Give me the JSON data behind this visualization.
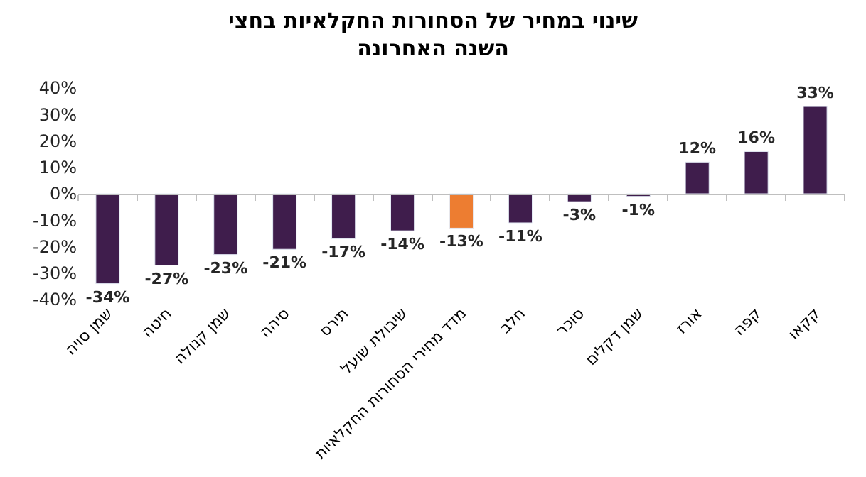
{
  "chart_data": {
    "type": "bar",
    "title": "שינוי במחיר של הסחורות החקלאיות בחצי\nהשנה האחרונה",
    "categories": [
      "שמן סויה",
      "חיטה",
      "שמן קנולה",
      "סיהה",
      "תירס",
      "שיבולת שועל",
      "מדד מחירי הסחורות החקלאיות",
      "חלב",
      "סוכר",
      "שמן דקלים",
      "אורז",
      "קפה",
      "קקאו"
    ],
    "values": [
      -34,
      -27,
      -23,
      -21,
      -17,
      -14,
      -13,
      -11,
      -3,
      -1,
      12,
      16,
      33
    ],
    "colors": [
      "#3f1d4c",
      "#3f1d4c",
      "#3f1d4c",
      "#3f1d4c",
      "#3f1d4c",
      "#3f1d4c",
      "#ed7d31",
      "#3f1d4c",
      "#3f1d4c",
      "#3f1d4c",
      "#3f1d4c",
      "#3f1d4c",
      "#3f1d4c"
    ],
    "value_labels": [
      "-34%",
      "-27%",
      "-23%",
      "-21%",
      "-17%",
      "-14%",
      "-13%",
      "-11%",
      "-3%",
      "-1%",
      "12%",
      "16%",
      "33%"
    ],
    "ylim": [
      -40,
      40
    ],
    "yticks": [
      {
        "value": -40,
        "label": "-40%"
      },
      {
        "value": -30,
        "label": "-30%"
      },
      {
        "value": -20,
        "label": "-20%"
      },
      {
        "value": -10,
        "label": "-10%"
      },
      {
        "value": 0,
        "label": "0%"
      },
      {
        "value": 10,
        "label": "10%"
      },
      {
        "value": 20,
        "label": "20%"
      },
      {
        "value": 30,
        "label": "30%"
      },
      {
        "value": 40,
        "label": "40%"
      }
    ]
  }
}
